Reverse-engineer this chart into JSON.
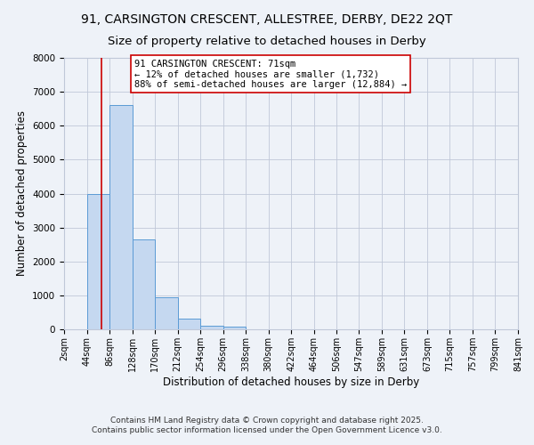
{
  "title_line1": "91, CARSINGTON CRESCENT, ALLESTREE, DERBY, DE22 2QT",
  "title_line2": "Size of property relative to detached houses in Derby",
  "xlabel": "Distribution of detached houses by size in Derby",
  "ylabel": "Number of detached properties",
  "bins": [
    2,
    44,
    86,
    128,
    170,
    212,
    254,
    296,
    338,
    380,
    422,
    464,
    506,
    547,
    589,
    631,
    673,
    715,
    757,
    799,
    841
  ],
  "bar_labels": [
    "2sqm",
    "44sqm",
    "86sqm",
    "128sqm",
    "170sqm",
    "212sqm",
    "254sqm",
    "296sqm",
    "338sqm",
    "380sqm",
    "422sqm",
    "464sqm",
    "506sqm",
    "547sqm",
    "589sqm",
    "631sqm",
    "673sqm",
    "715sqm",
    "757sqm",
    "799sqm",
    "841sqm"
  ],
  "bar_heights": [
    0,
    4000,
    6600,
    2650,
    950,
    320,
    100,
    70,
    0,
    0,
    0,
    0,
    0,
    0,
    0,
    0,
    0,
    0,
    0,
    0
  ],
  "bar_color": "#c5d8f0",
  "bar_edge_color": "#5b9bd5",
  "grid_color": "#c0c8d8",
  "background_color": "#eef2f8",
  "property_size": 71,
  "marker_line_color": "#cc0000",
  "annotation_text": "91 CARSINGTON CRESCENT: 71sqm\n← 12% of detached houses are smaller (1,732)\n88% of semi-detached houses are larger (12,884) →",
  "annotation_box_color": "#ffffff",
  "annotation_box_edge": "#cc0000",
  "ylim": [
    0,
    8000
  ],
  "yticks": [
    0,
    1000,
    2000,
    3000,
    4000,
    5000,
    6000,
    7000,
    8000
  ],
  "footer_line1": "Contains HM Land Registry data © Crown copyright and database right 2025.",
  "footer_line2": "Contains public sector information licensed under the Open Government Licence v3.0.",
  "title_fontsize": 10,
  "axis_label_fontsize": 8.5,
  "tick_fontsize": 7.5,
  "annotation_fontsize": 7.5,
  "footer_fontsize": 6.5
}
